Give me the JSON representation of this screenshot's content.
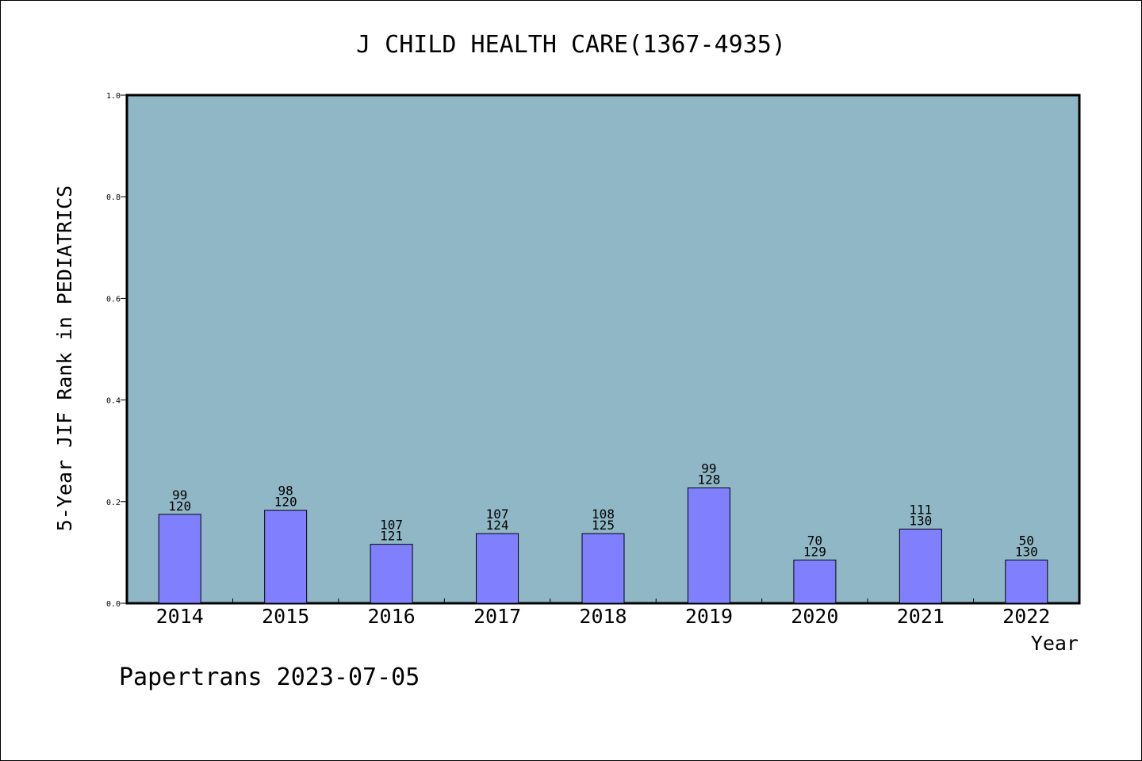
{
  "chart_data": {
    "type": "bar",
    "title": "J CHILD HEALTH CARE(1367-4935)",
    "xlabel": "Year",
    "ylabel": "5-Year JIF Rank in PEDIATRICS",
    "categories": [
      "2014",
      "2015",
      "2016",
      "2017",
      "2018",
      "2019",
      "2020",
      "2021",
      "2022"
    ],
    "values": [
      0.175,
      0.183,
      0.116,
      0.137,
      0.137,
      0.227,
      0.085,
      0.146,
      0.085
    ],
    "rank": [
      "99",
      "98",
      "107",
      "107",
      "108",
      "99",
      "70",
      "111",
      "50"
    ],
    "total": [
      "120",
      "120",
      "121",
      "124",
      "125",
      "128",
      "129",
      "130",
      "130"
    ],
    "ylim": [
      0,
      1.0
    ],
    "yticks": [
      "0.0",
      "0.2",
      "0.4",
      "0.6",
      "0.8",
      "1.0"
    ],
    "grid": false,
    "colors": {
      "plot_bg": "#8fb7c6",
      "bar_fill": "#8080ff",
      "bar_stroke": "#000000",
      "axis": "#000000"
    }
  },
  "footer": {
    "text": "Papertrans 2023-07-05"
  }
}
